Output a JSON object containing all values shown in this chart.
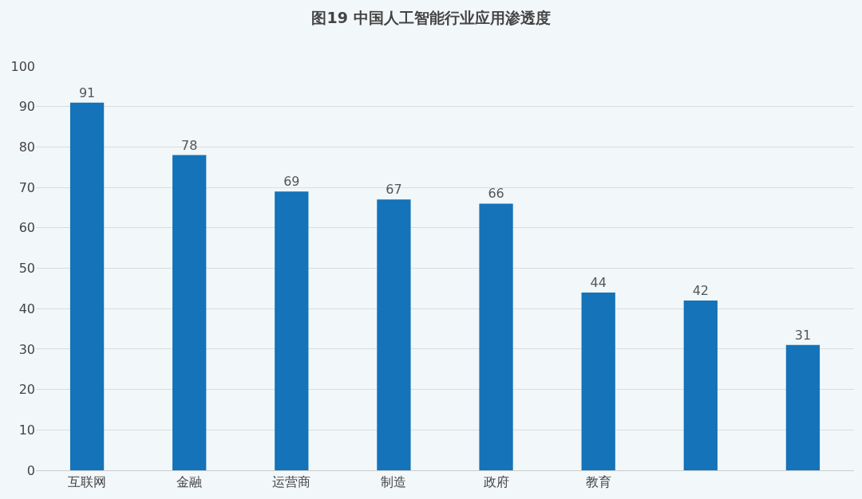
{
  "chart_data": {
    "type": "bar",
    "title": "图19 中国人工智能行业应用渗透度",
    "categories": [
      "互联网",
      "金融",
      "运营商",
      "制造",
      "政府",
      "教育",
      null,
      null
    ],
    "values": [
      91,
      78,
      69,
      67,
      66,
      44,
      42,
      31
    ],
    "color": "#1473b9",
    "ylim": [
      0,
      100
    ],
    "yticks": [
      0,
      10,
      20,
      30,
      40,
      50,
      60,
      70,
      80,
      90,
      100
    ],
    "grid": "y",
    "data_labels": true
  }
}
